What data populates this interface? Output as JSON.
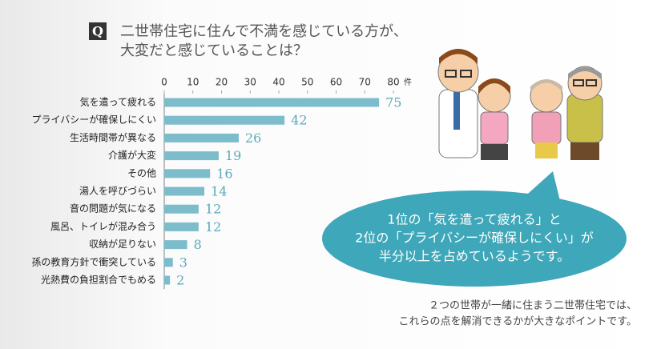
{
  "chart_data": {
    "type": "hbar",
    "icon": "Q",
    "title_lines": [
      "二世帯住宅に住んで不満を感じている方が、",
      "大変だと感じていることは？"
    ],
    "categories": [
      "気を遣って疲れる",
      "プライバシーが確保しにくい",
      "生活時間帯が異なる",
      "介護が大変",
      "その他",
      "湯人を呼びづらい",
      "音の問題が気になる",
      "風呂、トイレが混み合う",
      "収納が足りない",
      "孫の教育方針で衝突している",
      "光熱費の負担割合でもめる"
    ],
    "values": [
      75,
      42,
      26,
      19,
      16,
      14,
      12,
      12,
      8,
      3,
      2
    ],
    "color": "#7dbccb",
    "label_color": "#5aa9bb",
    "xlim": [
      0,
      80
    ],
    "xticks": [
      0,
      10,
      20,
      30,
      40,
      50,
      60,
      70,
      80
    ],
    "xlabel": "件",
    "callout_lines": [
      "1位の「気を遣って疲れる」と",
      "2位の「プライバシーが確保しにくい」が",
      "半分以上を占めているようです。"
    ],
    "callout_color": "#3ea7ba",
    "footer_lines": [
      "２つの世帯が一緒に住まう二世帯住宅では、",
      "これらの点を解消できるかが大きなポイントです。"
    ]
  }
}
